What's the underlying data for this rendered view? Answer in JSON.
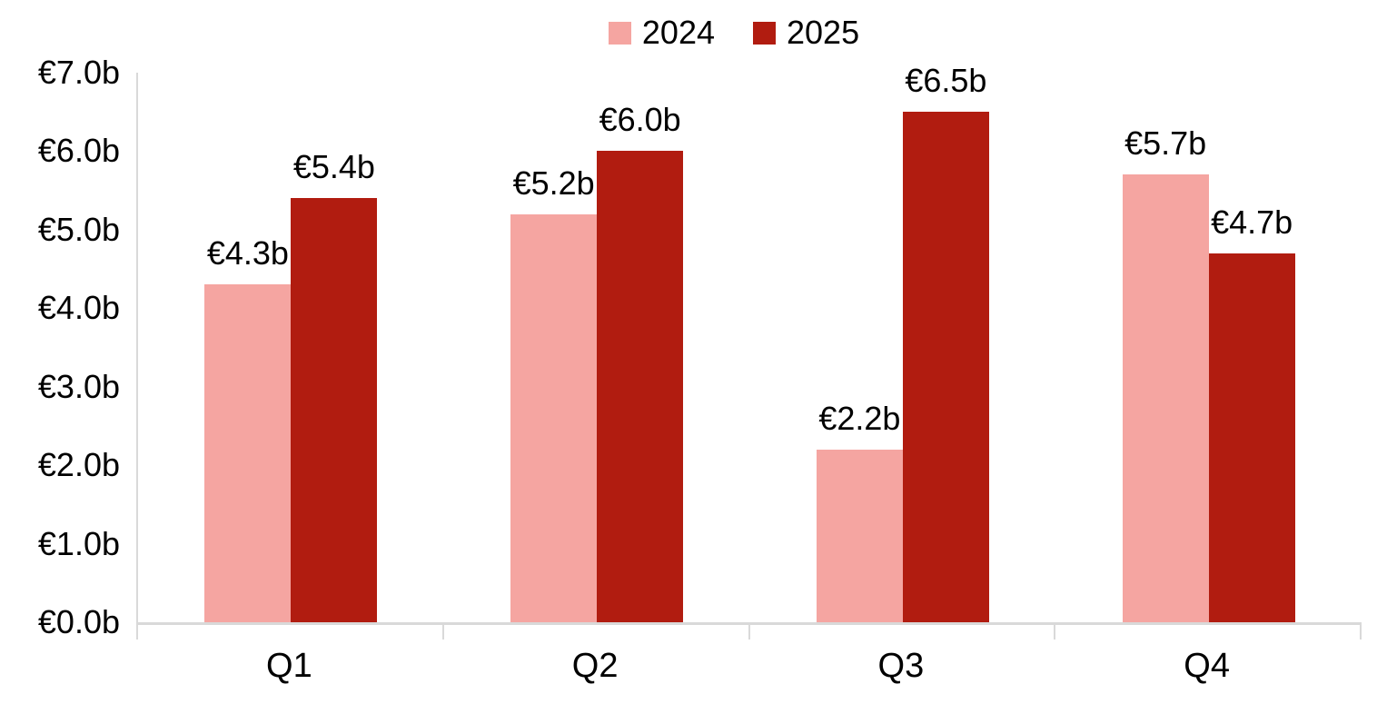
{
  "chart_data": {
    "type": "bar",
    "title": "",
    "xlabel": "",
    "ylabel": "",
    "categories": [
      "Q1",
      "Q2",
      "Q3",
      "Q4"
    ],
    "series": [
      {
        "name": "2024",
        "color": "#F5A5A1",
        "values": [
          4.3,
          5.2,
          2.2,
          5.7
        ],
        "labels": [
          "€4.3b",
          "€5.2b",
          "€2.2b",
          "€5.7b"
        ]
      },
      {
        "name": "2025",
        "color": "#B11C10",
        "values": [
          5.4,
          6.0,
          6.5,
          4.7
        ],
        "labels": [
          "€5.4b",
          "€6.0b",
          "€6.5b",
          "€4.7b"
        ]
      }
    ],
    "ylim": [
      0,
      7
    ],
    "y_ticks": [
      {
        "value": 7,
        "label": "€7.0b"
      },
      {
        "value": 6,
        "label": "€6.0b"
      },
      {
        "value": 5,
        "label": "€5.0b"
      },
      {
        "value": 4,
        "label": "€4.0b"
      },
      {
        "value": 3,
        "label": "€3.0b"
      },
      {
        "value": 2,
        "label": "€2.0b"
      },
      {
        "value": 1,
        "label": "€1.0b"
      },
      {
        "value": 0,
        "label": "€0.0b"
      }
    ],
    "legend_position": "top",
    "grid": false,
    "axis_color": "#D9D9D9",
    "label_color": "#000000"
  }
}
